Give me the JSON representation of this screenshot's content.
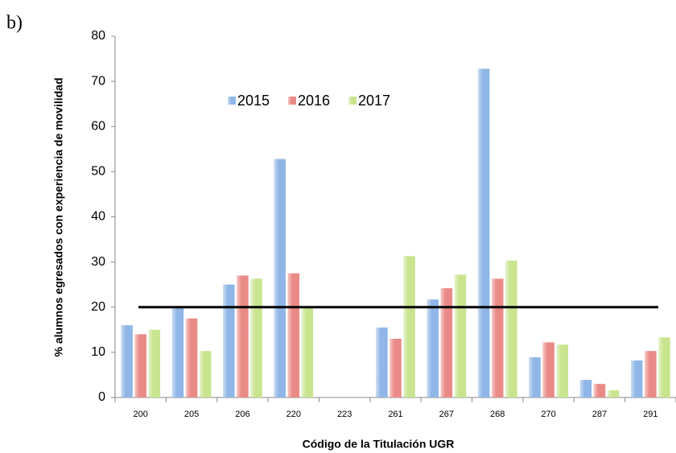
{
  "panel_label": "b)",
  "chart_data": {
    "type": "bar",
    "x_label": "Código de la Titulación UGR",
    "y_label": "% alumnos egresados con experiencia de movilidad",
    "categories": [
      "200",
      "205",
      "206",
      "220",
      "223",
      "261",
      "267",
      "268",
      "270",
      "287",
      "291"
    ],
    "series": [
      {
        "name": "2015",
        "color": "#8fb6e6",
        "values": [
          16,
          20,
          25,
          52.8,
          0,
          15.5,
          21.7,
          72.8,
          8.9,
          3.9,
          8.2
        ]
      },
      {
        "name": "2016",
        "color": "#ea8a86",
        "values": [
          14,
          17.5,
          27,
          27.5,
          0,
          13,
          24.2,
          26.3,
          12.2,
          3,
          10.3
        ]
      },
      {
        "name": "2017",
        "color": "#c8e48f",
        "values": [
          15,
          10.3,
          26.3,
          20,
          0,
          31.3,
          27.2,
          30.3,
          11.7,
          1.6,
          13.3
        ]
      }
    ],
    "reference_line": 20,
    "ylim": [
      0,
      80
    ],
    "yticks": [
      0,
      10,
      20,
      30,
      40,
      50,
      60,
      70,
      80
    ],
    "legend": "top"
  }
}
